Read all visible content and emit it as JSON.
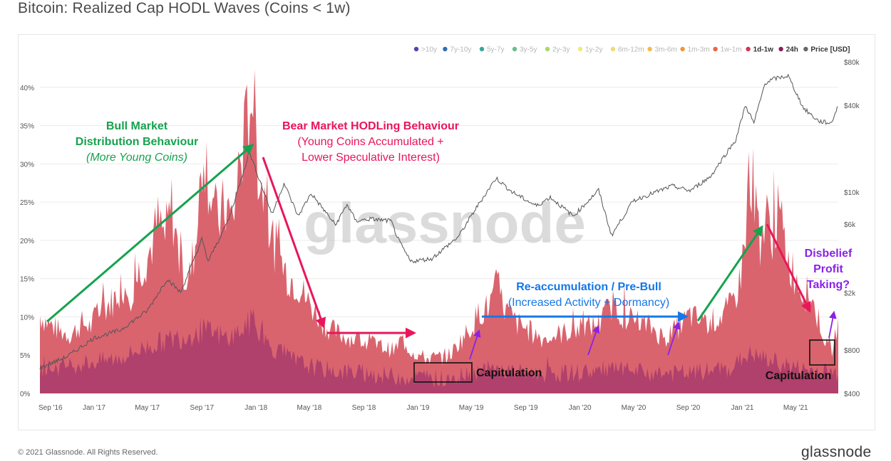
{
  "title": "Bitcoin: Realized Cap HODL Waves (Coins  < 1w)",
  "watermark": "glassnode",
  "footer": {
    "copyright": "© 2021 Glassnode. All Rights Reserved.",
    "logo": "glassnode"
  },
  "colors": {
    "band_1d_1w": "#d9646e",
    "band_24h": "#a83a6c",
    "price": "#555555",
    "green_annotation": "#16a24f",
    "red_annotation": "#e8165a",
    "blue_annotation": "#1677e6",
    "purple_annotation": "#8a22e6"
  },
  "chart_data": {
    "type": "area",
    "title": "Bitcoin: Realized Cap HODL Waves (Coins  < 1w)",
    "x_ticks": [
      "Sep '16",
      "Jan '17",
      "May '17",
      "Sep '17",
      "Jan '18",
      "May '18",
      "Sep '18",
      "Jan '19",
      "May '19",
      "Sep '19",
      "Jan '20",
      "May '20",
      "Sep '20",
      "Jan '21",
      "May '21"
    ],
    "y_left": {
      "ylim": [
        0,
        45
      ],
      "ticks": [
        "0%",
        "5%",
        "10%",
        "15%",
        "20%",
        "25%",
        "30%",
        "35%",
        "40%"
      ]
    },
    "y_right": {
      "scale": "log",
      "ticks": [
        "$400",
        "$800",
        "$2k",
        "$6k",
        "$10k",
        "$40k",
        "$80k"
      ]
    },
    "legend": {
      "placement": "top-right",
      "items": [
        {
          "label": ">10y",
          "color": "#5b3fb0",
          "active": false
        },
        {
          "label": "7y-10y",
          "color": "#2f6fb5",
          "active": false
        },
        {
          "label": "5y-7y",
          "color": "#3aa59a",
          "active": false
        },
        {
          "label": "3y-5y",
          "color": "#66c08a",
          "active": false
        },
        {
          "label": "2y-3y",
          "color": "#a7d96e",
          "active": false
        },
        {
          "label": "1y-2y",
          "color": "#ecec7a",
          "active": false
        },
        {
          "label": "6m-12m",
          "color": "#f4d872",
          "active": false
        },
        {
          "label": "3m-6m",
          "color": "#f5b94a",
          "active": false
        },
        {
          "label": "1m-3m",
          "color": "#ef9540",
          "active": false
        },
        {
          "label": "1w-1m",
          "color": "#e9664a",
          "active": false
        },
        {
          "label": "1d-1w",
          "color": "#d63455",
          "active": true
        },
        {
          "label": "24h",
          "color": "#8c1e57",
          "active": true
        },
        {
          "label": "Price [USD]",
          "color": "#666666",
          "active": true
        }
      ]
    },
    "series": [
      {
        "name": "1d-1w",
        "x": [
          "2016-09-01",
          "2016-09-20",
          "2016-10-15",
          "2016-11-10",
          "2016-12-05",
          "2016-12-25",
          "2017-01-05",
          "2017-01-25",
          "2017-02-15",
          "2017-03-05",
          "2017-03-25",
          "2017-04-15",
          "2017-05-05",
          "2017-05-25",
          "2017-06-10",
          "2017-06-25",
          "2017-07-15",
          "2017-08-01",
          "2017-08-20",
          "2017-09-05",
          "2017-09-15",
          "2017-10-05",
          "2017-10-25",
          "2017-11-10",
          "2017-11-25",
          "2017-12-05",
          "2017-12-15",
          "2017-12-22",
          "2018-01-05",
          "2018-01-20",
          "2018-02-05",
          "2018-02-25",
          "2018-03-15",
          "2018-04-05",
          "2018-04-25",
          "2018-05-15",
          "2018-06-10",
          "2018-07-10",
          "2018-08-10",
          "2018-09-10",
          "2018-10-10",
          "2018-11-10",
          "2018-11-25",
          "2018-12-15",
          "2019-01-15",
          "2019-02-15",
          "2019-03-15",
          "2019-04-10",
          "2019-05-01",
          "2019-05-20",
          "2019-06-10",
          "2019-06-26",
          "2019-07-15",
          "2019-08-10",
          "2019-09-10",
          "2019-10-10",
          "2019-11-10",
          "2019-12-10",
          "2020-01-15",
          "2020-02-15",
          "2020-03-12",
          "2020-04-10",
          "2020-05-10",
          "2020-06-10",
          "2020-07-10",
          "2020-08-10",
          "2020-09-05",
          "2020-10-05",
          "2020-11-05",
          "2020-12-05",
          "2020-12-25",
          "2021-01-05",
          "2021-01-12",
          "2021-01-25",
          "2021-02-10",
          "2021-02-25",
          "2021-03-10",
          "2021-03-25",
          "2021-04-15",
          "2021-05-10",
          "2021-05-20",
          "2021-06-05",
          "2021-06-25",
          "2021-07-10",
          "2021-07-25",
          "2021-08-05"
        ],
        "values": [
          10,
          9,
          8,
          7.5,
          9,
          8.5,
          10,
          11,
          12,
          14,
          13,
          16,
          18,
          22,
          20,
          24,
          16,
          14,
          20,
          33,
          28,
          22,
          24,
          22,
          30,
          32,
          36,
          40,
          30,
          25,
          20,
          17,
          15,
          14,
          12,
          10.5,
          8.5,
          7.5,
          7,
          6.5,
          6,
          5.5,
          7,
          5.5,
          4.5,
          4.5,
          5,
          7,
          8.5,
          10.5,
          11,
          13.5,
          11,
          9,
          8,
          7,
          7.5,
          8,
          8.5,
          9,
          11.5,
          10,
          9,
          8.5,
          7,
          8.5,
          10,
          9,
          9.5,
          11,
          14,
          19,
          24,
          27,
          20,
          22,
          21,
          23,
          17,
          14,
          13,
          12,
          9,
          6,
          5.5,
          10
        ]
      },
      {
        "name": "24h",
        "x": [
          "2016-09-01",
          "2016-11-01",
          "2017-01-01",
          "2017-03-01",
          "2017-05-01",
          "2017-07-01",
          "2017-09-01",
          "2017-11-01",
          "2017-12-20",
          "2018-02-01",
          "2018-04-01",
          "2018-06-01",
          "2018-09-01",
          "2018-12-01",
          "2019-03-01",
          "2019-06-01",
          "2019-09-01",
          "2019-12-01",
          "2020-03-12",
          "2020-06-01",
          "2020-09-01",
          "2020-12-01",
          "2021-01-15",
          "2021-03-15",
          "2021-05-15",
          "2021-08-05"
        ],
        "values": [
          3,
          3.5,
          4,
          4.5,
          6,
          7,
          8,
          7,
          9,
          6,
          4,
          3,
          2.5,
          2,
          1.8,
          3,
          2.5,
          2.5,
          3,
          2.5,
          2.5,
          3,
          5,
          4,
          3,
          2.5
        ]
      },
      {
        "name": "Price [USD]",
        "x": [
          "2016-09-01",
          "2016-11-01",
          "2017-01-01",
          "2017-03-01",
          "2017-05-01",
          "2017-06-15",
          "2017-07-15",
          "2017-09-01",
          "2017-09-15",
          "2017-11-01",
          "2017-12-17",
          "2018-02-06",
          "2018-03-05",
          "2018-04-06",
          "2018-05-05",
          "2018-06-29",
          "2018-07-25",
          "2018-08-14",
          "2018-09-15",
          "2018-11-01",
          "2018-11-20",
          "2018-12-15",
          "2019-02-01",
          "2019-04-02",
          "2019-05-15",
          "2019-06-26",
          "2019-08-01",
          "2019-09-25",
          "2019-10-26",
          "2019-12-17",
          "2020-02-12",
          "2020-03-12",
          "2020-04-30",
          "2020-06-01",
          "2020-07-27",
          "2020-09-05",
          "2020-10-21",
          "2020-11-25",
          "2020-12-17",
          "2021-01-08",
          "2021-01-27",
          "2021-02-21",
          "2021-03-13",
          "2021-04-14",
          "2021-05-19",
          "2021-06-22",
          "2021-07-20",
          "2021-08-05"
        ],
        "values": [
          600,
          720,
          970,
          1100,
          1500,
          2500,
          2000,
          4700,
          3300,
          6500,
          19000,
          7000,
          11500,
          6800,
          9800,
          5900,
          8200,
          6300,
          6500,
          6300,
          4500,
          3300,
          3450,
          4900,
          8000,
          12500,
          10000,
          8000,
          9200,
          6800,
          10300,
          5000,
          8700,
          9500,
          11000,
          10200,
          12800,
          18500,
          23000,
          40000,
          30000,
          57000,
          61000,
          64000,
          38000,
          31000,
          30000,
          40000
        ]
      }
    ],
    "annotations": [
      {
        "text": "Bull Market",
        "color": "green"
      },
      {
        "text": "Distribution Behaviour",
        "color": "green"
      },
      {
        "text": "(More Young Coins)",
        "color": "green"
      },
      {
        "text": "Bear Market HODLing Behaviour",
        "color": "red"
      },
      {
        "text": "(Young Coins Accumulated +",
        "color": "red"
      },
      {
        "text": "Lower Speculative Interest)",
        "color": "red"
      },
      {
        "text": "Re-accumulation / Pre-Bull",
        "color": "blue"
      },
      {
        "text": "(Increased Activity + Dormancy)",
        "color": "blue"
      },
      {
        "text": "Capitulation",
        "color": "black"
      },
      {
        "text": "Capitulation",
        "color": "black"
      },
      {
        "text": "Disbelief",
        "color": "purple"
      },
      {
        "text": "Profit",
        "color": "purple"
      },
      {
        "text": "Taking?",
        "color": "purple"
      }
    ]
  }
}
